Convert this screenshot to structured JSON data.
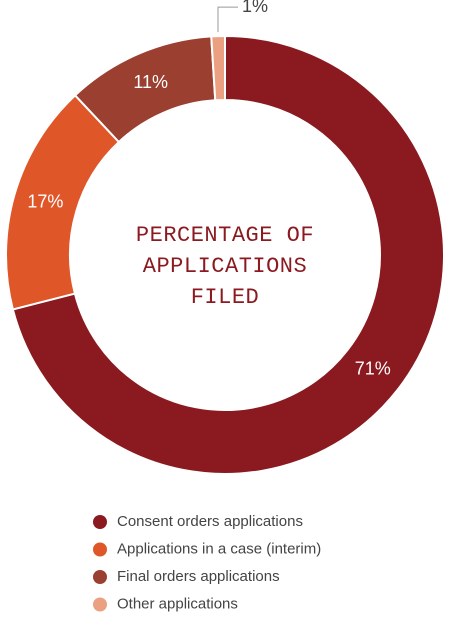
{
  "chart_data": {
    "type": "pie",
    "title": "PERCENTAGE OF APPLICATIONS FILED",
    "categories": [
      "Consent orders applications",
      "Applications in a case (interim)",
      "Final orders applications",
      "Other applications"
    ],
    "values": [
      71,
      17,
      11,
      1
    ],
    "value_labels": [
      "71%",
      "17%",
      "11%",
      "1%"
    ],
    "colors": [
      "#8a1a1f",
      "#df5729",
      "#9b3f30",
      "#eba082"
    ],
    "legend": "bottom"
  }
}
